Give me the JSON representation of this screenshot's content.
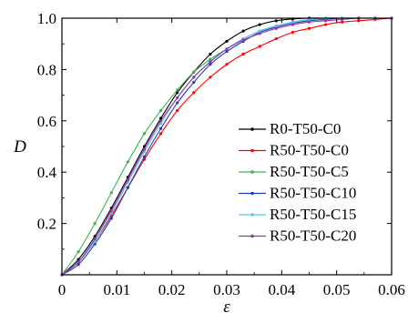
{
  "chart_data": {
    "type": "line",
    "title": "",
    "xlabel": "ε",
    "ylabel": "D",
    "xlim": [
      0,
      0.06
    ],
    "ylim": [
      0,
      1.0
    ],
    "x_ticks": [
      "0",
      "0.01",
      "0.02",
      "0.03",
      "0.04",
      "0.05",
      "0.06"
    ],
    "y_ticks": [
      "0.2",
      "0.4",
      "0.6",
      "0.8",
      "1.0"
    ],
    "x_tick_values": [
      0,
      0.01,
      0.02,
      0.03,
      0.04,
      0.05,
      0.06
    ],
    "y_tick_values": [
      0.2,
      0.4,
      0.6,
      0.8,
      1.0
    ],
    "grid": false,
    "legend_position": "right",
    "x": [
      0,
      0.003,
      0.006,
      0.009,
      0.012,
      0.015,
      0.018,
      0.021,
      0.024,
      0.027,
      0.03,
      0.033,
      0.036,
      0.039,
      0.042,
      0.045,
      0.048,
      0.051,
      0.054,
      0.057,
      0.06
    ],
    "series": [
      {
        "name": "R0-T50-C0",
        "color": "#000000",
        "marker": "dot",
        "values": [
          0,
          0.06,
          0.15,
          0.26,
          0.38,
          0.5,
          0.61,
          0.71,
          0.79,
          0.86,
          0.91,
          0.95,
          0.975,
          0.99,
          0.997,
          1.0,
          1.0,
          1.0,
          1.0,
          1.0,
          1.0
        ]
      },
      {
        "name": "R50-T50-C0",
        "color": "#ff0000",
        "marker": "dot",
        "values": [
          0,
          0.05,
          0.13,
          0.23,
          0.34,
          0.45,
          0.55,
          0.64,
          0.71,
          0.77,
          0.82,
          0.86,
          0.89,
          0.92,
          0.945,
          0.96,
          0.975,
          0.985,
          0.99,
          0.995,
          1.0
        ]
      },
      {
        "name": "R50-T50-C5",
        "color": "#3cb44b",
        "marker": "dot",
        "values": [
          0,
          0.09,
          0.2,
          0.32,
          0.44,
          0.55,
          0.64,
          0.72,
          0.79,
          0.84,
          0.88,
          0.92,
          0.95,
          0.97,
          0.985,
          0.995,
          1.0,
          1.0,
          1.0,
          1.0,
          1.0
        ]
      },
      {
        "name": "R50-T50-C10",
        "color": "#1f3fbf",
        "marker": "dot",
        "values": [
          0,
          0.04,
          0.12,
          0.22,
          0.34,
          0.46,
          0.57,
          0.67,
          0.75,
          0.82,
          0.87,
          0.91,
          0.945,
          0.965,
          0.98,
          0.99,
          0.995,
          1.0,
          1.0,
          1.0,
          1.0
        ]
      },
      {
        "name": "R50-T50-C15",
        "color": "#55c8e8",
        "marker": "dot",
        "values": [
          0,
          0.05,
          0.13,
          0.24,
          0.36,
          0.48,
          0.59,
          0.69,
          0.77,
          0.83,
          0.88,
          0.92,
          0.95,
          0.97,
          0.985,
          0.995,
          1.0,
          1.0,
          1.0,
          1.0,
          1.0
        ]
      },
      {
        "name": "R50-T50-C20",
        "color": "#9b30b0",
        "marker": "dot",
        "values": [
          0,
          0.05,
          0.14,
          0.25,
          0.37,
          0.49,
          0.6,
          0.69,
          0.77,
          0.83,
          0.88,
          0.915,
          0.94,
          0.96,
          0.975,
          0.985,
          0.99,
          0.995,
          1.0,
          1.0,
          1.0
        ]
      }
    ]
  }
}
